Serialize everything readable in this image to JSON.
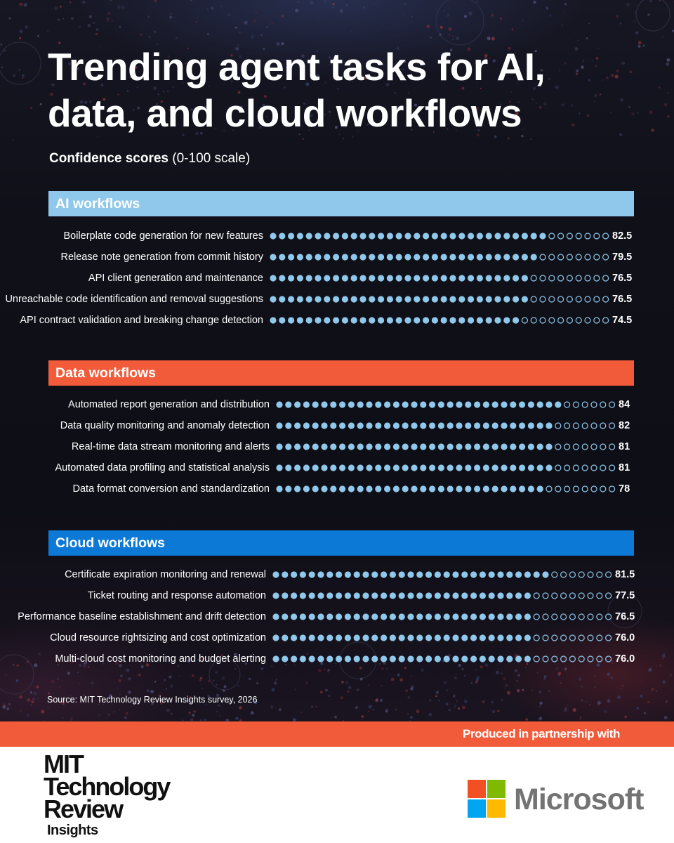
{
  "title": "Trending agent tasks for AI, data, and cloud workflows",
  "subtitle": {
    "bold": "Confidence scores",
    "rest": " (0-100 scale)"
  },
  "colors": {
    "background": "#11111a",
    "ai_header": "#8fc8ea",
    "data_header": "#f15b3a",
    "cloud_header": "#0d79d6",
    "dot_filled": "#8fc8ea",
    "dot_empty_stroke": "#8fc8ea",
    "footer_band": "#f15b3a",
    "ms_red": "#f25022",
    "ms_green": "#7fba00",
    "ms_blue": "#00a4ef",
    "ms_yellow": "#ffb900"
  },
  "chart_data": {
    "type": "bar",
    "scale": [
      0,
      100
    ],
    "series": [
      {
        "name": "AI workflows",
        "categories": [
          "Boilerplate code generation for new features",
          "Release note generation from commit history",
          "API client generation and maintenance",
          "Unreachable code identification and removal suggestions",
          "API contract validation and breaking change detection"
        ],
        "values": [
          82.5,
          79.5,
          76.5,
          76.5,
          74.5
        ],
        "labels": [
          "82.5",
          "79.5",
          "76.5",
          "76.5",
          "74.5"
        ]
      },
      {
        "name": "Data workflows",
        "categories": [
          "Automated report generation and distribution",
          "Data quality monitoring and anomaly detection",
          "Real-time data stream monitoring and alerts",
          "Automated data profiling and statistical analysis",
          "Data format conversion and standardization"
        ],
        "values": [
          84,
          82,
          81,
          81,
          78
        ],
        "labels": [
          "84",
          "82",
          "81",
          "81",
          "78"
        ]
      },
      {
        "name": "Cloud workflows",
        "categories": [
          "Certificate expiration monitoring and renewal",
          "Ticket routing and response automation",
          "Performance baseline establishment and drift detection",
          "Cloud resource rightsizing and cost optimization",
          "Multi-cloud cost monitoring and budget alerting"
        ],
        "values": [
          81.5,
          77.5,
          76.5,
          76.0,
          76.0
        ],
        "labels": [
          "81.5",
          "77.5",
          "76.5",
          "76.0",
          "76.0"
        ]
      }
    ]
  },
  "source": "Source: MIT Technology Review Insights survey, 2026",
  "footer": {
    "partner_text": "Produced in partnership with",
    "mit_logo": [
      "MIT",
      "Technology",
      "Review",
      "Insights"
    ],
    "partner_name": "Microsoft"
  }
}
